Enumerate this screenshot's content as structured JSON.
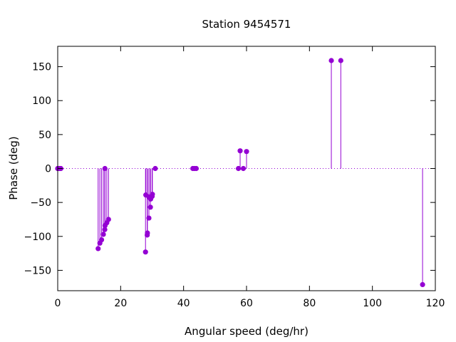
{
  "chart_data": {
    "type": "scatter",
    "style": "impulses-with-points",
    "title": "Station 9454571",
    "xlabel": "Angular speed (deg/hr)",
    "ylabel": "Phase (deg)",
    "xlim": [
      0,
      120
    ],
    "ylim": [
      -180,
      180
    ],
    "xticks": [
      0,
      20,
      40,
      60,
      80,
      100,
      120
    ],
    "yticks": [
      -150,
      -100,
      -50,
      0,
      50,
      100,
      150
    ],
    "grid": false,
    "zero_line": true,
    "color": "#9400d3",
    "series": [
      {
        "x": [
          0.0,
          0.04,
          0.08,
          0.5,
          0.6,
          1.0,
          12.85,
          13.4,
          13.94,
          14.5,
          14.96,
          15.0,
          15.04,
          15.59,
          16.14,
          27.9,
          28.0,
          28.44,
          28.51,
          28.98,
          29.0,
          29.46,
          29.53,
          30.0,
          30.08,
          31.0,
          42.93,
          43.48,
          44.03,
          57.42,
          57.97,
          58.98,
          60.0,
          86.95,
          89.96,
          115.94
        ],
        "y": [
          0,
          0,
          0,
          0,
          0,
          0,
          -118,
          -110,
          -105,
          -97,
          -90,
          0,
          -84,
          -80,
          -75,
          -123,
          -39,
          -98,
          -95,
          -73,
          -42,
          -57,
          -45,
          -41,
          -38,
          0,
          0,
          0,
          0,
          0,
          26,
          0,
          25,
          159,
          159,
          -171
        ]
      }
    ]
  }
}
